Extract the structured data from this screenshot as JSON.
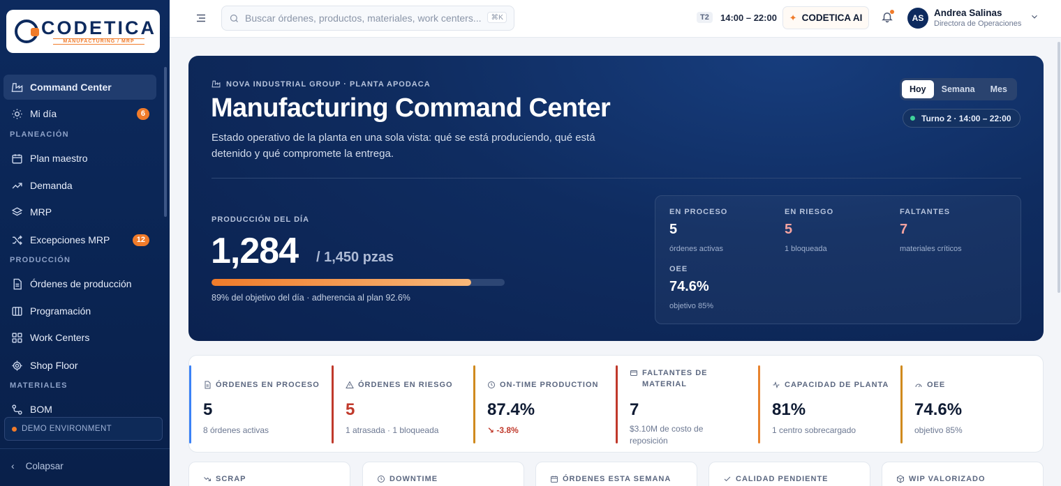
{
  "sidebar": {
    "logo_title": "CODETICA",
    "logo_subtitle": "MANUFACTURING / MRP",
    "items": [
      {
        "label": "Command Center",
        "icon": "factory-icon"
      },
      {
        "label": "Mi día",
        "icon": "sun-icon",
        "badge": "6"
      },
      {
        "label": "Plan maestro",
        "icon": "calendar-icon"
      },
      {
        "label": "Demanda",
        "icon": "trend-icon"
      },
      {
        "label": "MRP",
        "icon": "layers-icon"
      },
      {
        "label": "Excepciones MRP",
        "icon": "shuffle-icon",
        "badge": "12"
      },
      {
        "label": "Órdenes de producción",
        "icon": "document-icon"
      },
      {
        "label": "Programación",
        "icon": "columns-icon"
      },
      {
        "label": "Work Centers",
        "icon": "grid-icon"
      },
      {
        "label": "Shop Floor",
        "icon": "chip-icon"
      },
      {
        "label": "BOM",
        "icon": "bom-icon"
      }
    ],
    "sections": {
      "planeacion": "PLANEACIÓN",
      "produccion": "PRODUCCIÓN",
      "materiales": "MATERIALES"
    },
    "demo_env": "DEMO ENVIRONMENT",
    "collapse": "Colapsar"
  },
  "topbar": {
    "search_placeholder": "Buscar órdenes, productos, materiales, work centers...",
    "search_shortcut": "⌘K",
    "shift_code": "T2",
    "shift_time": "14:00 – 22:00",
    "ai_label": "CODETICA AI",
    "user_initials": "AS",
    "user_name": "Andrea Salinas",
    "user_role": "Directora de Operaciones"
  },
  "hero": {
    "eyebrow": "NOVA INDUSTRIAL GROUP · PLANTA APODACA",
    "title": "Manufacturing Command Center",
    "description": "Estado operativo de la planta en una sola vista: qué se está produciendo, qué está detenido y qué compromete la entrega.",
    "periods": [
      "Hoy",
      "Semana",
      "Mes"
    ],
    "active_period": "Hoy",
    "turno": "Turno 2 · 14:00 – 22:00",
    "production_label": "PRODUCCIÓN DEL DÍA",
    "production_value": "1,284",
    "production_target": "/ 1,450 pzas",
    "progress_fraction": 0.886,
    "progress_caption": "89% del objetivo del día · adherencia al plan 92.6%",
    "stats": [
      {
        "label": "EN PROCESO",
        "value": "5",
        "sub": "órdenes activas",
        "color": "#ffffff"
      },
      {
        "label": "EN RIESGO",
        "value": "5",
        "sub": "1 bloqueada",
        "color": "#f4a3a0"
      },
      {
        "label": "FALTANTES",
        "value": "7",
        "sub": "materiales críticos",
        "color": "#f4a3a0"
      },
      {
        "label": "OEE",
        "value": "74.6%",
        "sub": "objetivo 85%",
        "color": "#ffffff"
      }
    ]
  },
  "kpis": [
    {
      "label": "ÓRDENES EN PROCESO",
      "value": "5",
      "sub": "8 órdenes activas",
      "accent": "#3b82f6",
      "value_color": "#0f1b33",
      "icon": "document-icon"
    },
    {
      "label": "ÓRDENES EN RIESGO",
      "value": "5",
      "sub": "1 atrasada · 1 bloqueada",
      "accent": "#c0392b",
      "value_color": "#c0392b",
      "icon": "warning-icon"
    },
    {
      "label": "ON-TIME PRODUCTION",
      "value": "87.4%",
      "sub": "↘ -3.8%",
      "accent": "#d08a1e",
      "value_color": "#0f1b33",
      "sub_color": "#c0392b",
      "icon": "clock-icon"
    },
    {
      "label": "FALTANTES DE MATERIAL",
      "value": "7",
      "sub": "$3.10M de costo de reposición",
      "accent": "#c0392b",
      "value_color": "#0f1b33",
      "icon": "package-icon"
    },
    {
      "label": "CAPACIDAD DE PLANTA",
      "value": "81%",
      "sub": "1 centro sobrecargado",
      "accent": "#e8832e",
      "value_color": "#0f1b33",
      "icon": "pulse-icon"
    },
    {
      "label": "OEE",
      "value": "74.6%",
      "sub": "objetivo 85%",
      "accent": "#d08a1e",
      "value_color": "#0f1b33",
      "icon": "gauge-icon"
    }
  ],
  "mini_cards": [
    {
      "label": "SCRAP",
      "icon": "trend-down-icon"
    },
    {
      "label": "DOWNTIME",
      "icon": "clock-icon"
    },
    {
      "label": "ÓRDENES ESTA SEMANA",
      "icon": "calendar-icon"
    },
    {
      "label": "CALIDAD PENDIENTE",
      "icon": "check-icon"
    },
    {
      "label": "WIP VALORIZADO",
      "icon": "box-icon"
    }
  ]
}
